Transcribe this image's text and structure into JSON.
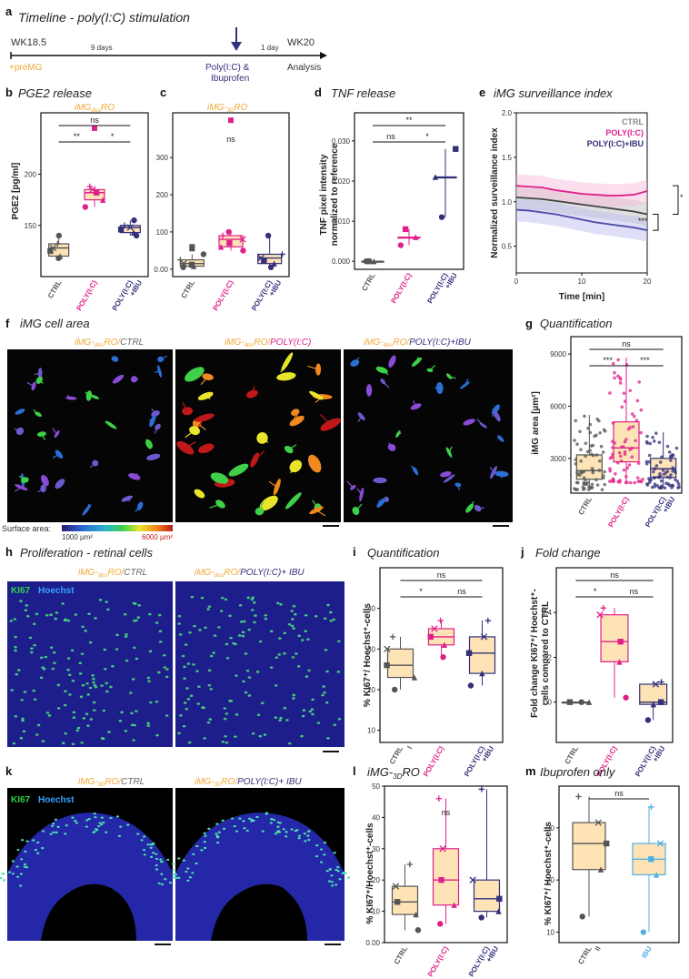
{
  "colors": {
    "ctrl": "#555555",
    "poly": "#e0208a",
    "ibu": "#33307a",
    "orange": "#f0a836",
    "fill": "#fde3b6",
    "ibuBlue": "#4fb0e0",
    "lavender": "#4a4aa8"
  },
  "panelA": {
    "label": "a",
    "title": "Timeline - poly(I:C) stimulation",
    "start": "WK18.5",
    "days9": "9 days",
    "day1": "1 day",
    "end": "WK20",
    "premg": "+preMG",
    "stim1": "Poly(I:C) &",
    "stim2": "Ibuprofen",
    "analysis": "Analysis"
  },
  "panelB": {
    "label": "b",
    "title": "PGE2 release",
    "subA": "iMG",
    "subB": "diss",
    "subC": "RO",
    "ylabel": "PGE2 [pg/ml]"
  },
  "panelC": {
    "label": "c",
    "subA": "iMG-",
    "subB": "3D",
    "subC": "RO"
  },
  "panelD": {
    "label": "d",
    "title": "TNF release",
    "ylabel1": "TNF pixel intensity",
    "ylabel2": "normalized to reference"
  },
  "panelE": {
    "label": "e",
    "title": "iMG surveillance index",
    "ylabel": "Normalized surveillance index",
    "xlabel": "Time [min]",
    "leg1": "CTRL",
    "leg2": "POLY(I:C)",
    "leg3": "POLY(I:C)+IBU"
  },
  "panelF": {
    "label": "f",
    "title": "iMG cell area",
    "c1a": "iMG-",
    "c1b": "diss",
    "c1c": "RO/",
    "c1d": "CTRL",
    "c2d": "POLY(I:C)",
    "c3d": "POLY(I:C)+IBU",
    "sa": "Surface area:",
    "smin": "1000 µm²",
    "smax": "6000 µm²"
  },
  "panelG": {
    "label": "g",
    "title": "Quantification",
    "ylabel": "iMG area [µm²]"
  },
  "panelH": {
    "label": "h",
    "title": "Proliferation - retinal cells",
    "ki": "KI67",
    "ho": "Hoechst",
    "c1d": "CTRL",
    "c2d": "POLY(I:C)+ IBU"
  },
  "panelI": {
    "label": "i",
    "title": "Quantification",
    "ylabel": "% KI67⁺/ Hoechst⁺-cells"
  },
  "panelJ": {
    "label": "j",
    "title": "Fold change",
    "ylabel1": "Fold change  KI67⁺/ Hoechst⁺-",
    "ylabel2": "cells compared to CTRL"
  },
  "panelK": {
    "label": "k",
    "c1a": "iMG-",
    "c1b": "3D",
    "c1c": "RO/",
    "c1d": "CTRL",
    "c2d": "POLY(I:C)+ IBU"
  },
  "panelL": {
    "label": "l",
    "titleA": "iMG-",
    "titleB": "3D",
    "titleC": "RO",
    "ylabel": "% KI67⁺/Hoechst⁺-cells"
  },
  "panelM": {
    "label": "m",
    "title": "Ibuprofen only",
    "ylabel": "% KI67⁺/ Hoechst⁺-cells"
  },
  "chart_data": [
    {
      "id": "b",
      "type": "box",
      "title": "PGE2 release",
      "ylabel": "PGE2 [pg/ml]",
      "ylim": [
        100,
        260
      ],
      "yticks": [
        150,
        200
      ],
      "categories": [
        "CTRL",
        "POLY(I:C)",
        "POLY(I:C) +IBU"
      ],
      "values": [
        [
          118,
          120,
          125,
          128,
          132,
          140
        ],
        [
          168,
          175,
          182,
          185,
          188
        ],
        [
          140,
          143,
          146,
          148,
          150,
          155
        ]
      ],
      "outliers": [
        [],
        [
          245
        ],
        []
      ],
      "sig": [
        {
          "from": 0,
          "to": 2,
          "text": "ns"
        },
        {
          "from": 0,
          "to": 1,
          "text": "**"
        },
        {
          "from": 1,
          "to": 2,
          "text": "*"
        }
      ]
    },
    {
      "id": "c",
      "type": "box",
      "title": "iMG-3D RO",
      "ylim": [
        -20,
        420
      ],
      "yticks": [
        0,
        100,
        200,
        300
      ],
      "categories": [
        "CTRL",
        "POLY(I:C)",
        "POLY(I:C) +IBU"
      ],
      "values": [
        [
          5,
          8,
          12,
          15,
          25,
          40
        ],
        [
          50,
          60,
          70,
          80,
          90,
          100
        ],
        [
          5,
          15,
          22,
          30,
          40,
          90
        ]
      ],
      "outliers": [
        [
          55,
          60
        ],
        [
          400
        ],
        []
      ],
      "sig": [
        {
          "from": 1,
          "to": 1,
          "text": "ns"
        }
      ]
    },
    {
      "id": "d",
      "type": "box",
      "title": "TNF release",
      "ylim": [
        -0.002,
        0.037
      ],
      "yticks": [
        0,
        0.01,
        0.02,
        0.03
      ],
      "categories": [
        "CTRL",
        "POLY(I:C)",
        "POLY(I:C) +IBU"
      ],
      "values": [
        [
          0,
          0,
          0
        ],
        [
          0.004,
          0.006,
          0.008
        ],
        [
          0.011,
          0.021,
          0.028
        ]
      ],
      "sig": [
        {
          "from": 0,
          "to": 2,
          "text": "**"
        },
        {
          "from": 0,
          "to": 1,
          "text": "ns"
        },
        {
          "from": 1,
          "to": 2,
          "text": "*"
        }
      ]
    },
    {
      "id": "e",
      "type": "line",
      "title": "iMG surveillance index",
      "xlabel": "Time [min]",
      "ylabel": "Normalized surveillance index",
      "xlim": [
        0,
        20
      ],
      "ylim": [
        0.2,
        2.0
      ],
      "xticks": [
        0,
        10,
        20
      ],
      "yticks": [
        0.5,
        1.0,
        1.5,
        2.0
      ],
      "x": [
        0,
        2,
        4,
        6,
        8,
        10,
        12,
        14,
        16,
        18,
        20
      ],
      "series": [
        {
          "name": "CTRL",
          "values": [
            1.05,
            1.04,
            1.03,
            1.01,
            0.99,
            0.97,
            0.95,
            0.93,
            0.91,
            0.89,
            0.86
          ]
        },
        {
          "name": "POLY(I:C)",
          "values": [
            1.18,
            1.17,
            1.16,
            1.13,
            1.11,
            1.09,
            1.08,
            1.07,
            1.07,
            1.08,
            1.12
          ]
        },
        {
          "name": "POLY(I:C)+IBU",
          "values": [
            0.91,
            0.9,
            0.88,
            0.86,
            0.83,
            0.8,
            0.77,
            0.75,
            0.73,
            0.71,
            0.68
          ]
        }
      ],
      "sig": [
        "*",
        "***"
      ]
    },
    {
      "id": "g",
      "type": "box",
      "title": "Quantification",
      "ylabel": "iMG area [µm²]",
      "ylim": [
        1000,
        10000
      ],
      "yticks": [
        3000,
        6000,
        9000
      ],
      "categories": [
        "CTRL",
        "POLY(I:C)",
        "POLY(I:C) +IBU"
      ],
      "values": [
        [
          1200,
          1800,
          2300,
          3200,
          5500
        ],
        [
          1600,
          2800,
          3600,
          5100,
          8800
        ],
        [
          1300,
          1900,
          2400,
          3000,
          4500
        ]
      ],
      "sig": [
        {
          "from": 0,
          "to": 2,
          "text": "ns"
        },
        {
          "from": 0,
          "to": 1,
          "text": "***"
        },
        {
          "from": 1,
          "to": 2,
          "text": "***"
        }
      ]
    },
    {
      "id": "i",
      "type": "box",
      "title": "Quantification",
      "ylabel": "% KI67+/ Hoechst+-cells",
      "ylim": [
        7,
        50
      ],
      "yticks": [
        10,
        20,
        30,
        40
      ],
      "categories": [
        "CTRL I",
        "POLY(I:C)",
        "POLY(I:C) +IBU"
      ],
      "values": [
        [
          20,
          23,
          26,
          30,
          33
        ],
        [
          28,
          31,
          33,
          35,
          37
        ],
        [
          21,
          24,
          29,
          33,
          37
        ]
      ],
      "sig": [
        {
          "from": 0,
          "to": 2,
          "text": "ns"
        },
        {
          "from": 0,
          "to": 1,
          "text": "*"
        },
        {
          "from": 1,
          "to": 2,
          "text": "ns"
        }
      ]
    },
    {
      "id": "j",
      "type": "box",
      "title": "Fold change",
      "ylim": [
        0.82,
        1.6
      ],
      "yticks": [
        1.0,
        1.2,
        1.4
      ],
      "categories": [
        "CTRL",
        "POLY(I:C)",
        "POLY(I:C) +IBU"
      ],
      "values": [
        [
          1,
          1,
          1
        ],
        [
          1.02,
          1.18,
          1.27,
          1.39,
          1.42
        ],
        [
          0.92,
          0.99,
          1.0,
          1.08,
          1.09
        ]
      ],
      "sig": [
        {
          "from": 0,
          "to": 2,
          "text": "ns"
        },
        {
          "from": 0,
          "to": 1,
          "text": "*"
        },
        {
          "from": 1,
          "to": 2,
          "text": "ns"
        }
      ]
    },
    {
      "id": "l",
      "type": "box",
      "title": "iMG-3D RO",
      "ylabel": "% KI67+/Hoechst+-cells",
      "ylim": [
        0,
        50
      ],
      "yticks": [
        0,
        10,
        20,
        30,
        40,
        50
      ],
      "categories": [
        "CTRL",
        "POLY(I:C)",
        "POLY(I:C) +IBU"
      ],
      "values": [
        [
          4,
          9,
          13,
          18,
          25
        ],
        [
          6,
          12,
          20,
          30,
          46
        ],
        [
          8,
          10,
          14,
          20,
          49
        ]
      ],
      "sig": [
        {
          "from": 1,
          "to": 1,
          "text": "ns"
        }
      ]
    },
    {
      "id": "m",
      "type": "box",
      "title": "Ibuprofen only",
      "ylabel": "% KI67+/ Hoechst+-cells",
      "ylim": [
        8,
        38
      ],
      "yticks": [
        10,
        20,
        30
      ],
      "categories": [
        "CTRL II",
        "IBU"
      ],
      "values": [
        [
          13,
          22,
          27,
          31,
          36
        ],
        [
          10,
          21,
          24,
          27,
          34
        ]
      ],
      "sig": [
        {
          "from": 0,
          "to": 1,
          "text": "ns"
        }
      ]
    }
  ]
}
